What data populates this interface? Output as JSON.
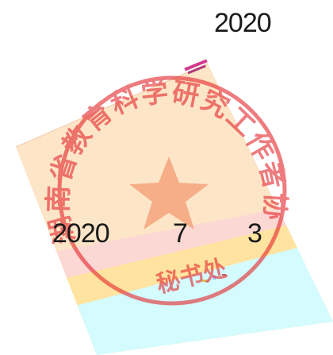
{
  "header": {
    "year": "2020"
  },
  "date": {
    "year": "2020",
    "month": "7",
    "day": "3"
  },
  "seal": {
    "ring_text": "湖南省教育科学研究工作者协会",
    "inner_text": "秘书处",
    "color": "#e4262b",
    "icon": "star-icon"
  },
  "colors": {
    "peach": "#fde5c8",
    "pink": "#fcd8d4",
    "yellow": "#ffe3a0",
    "cyan": "#d4fbfd",
    "accent": "#d43a8c"
  }
}
